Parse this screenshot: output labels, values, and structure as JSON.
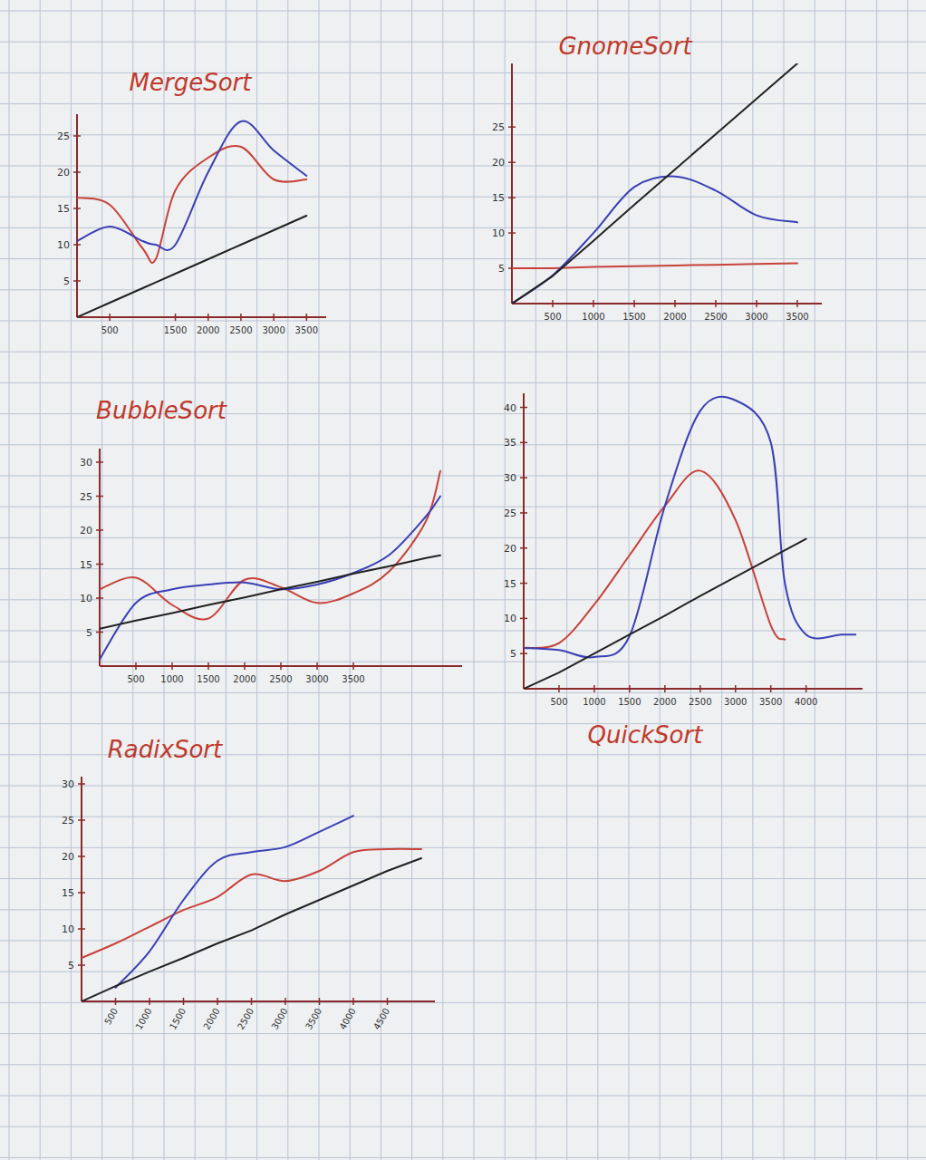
{
  "chart_data": [
    {
      "type": "line",
      "title": "MergeSort",
      "x": [
        0,
        500,
        1000,
        1200,
        1500,
        2000,
        2500,
        3000,
        3500
      ],
      "series": [
        {
          "color": "#c8423a",
          "line_style": "smooth",
          "values": [
            16.5,
            15.5,
            9.5,
            8,
            17.5,
            22,
            23.5,
            19,
            19
          ]
        },
        {
          "color": "#3b3fb5",
          "line_style": "smooth",
          "values": [
            10.5,
            12.5,
            10.5,
            10,
            10,
            20,
            27,
            23,
            19.5
          ]
        },
        {
          "color": "#222222",
          "line_style": "solid",
          "values": [
            0,
            2,
            4,
            4.8,
            6,
            8,
            10,
            12,
            14
          ]
        }
      ],
      "xlim": [
        0,
        3800
      ],
      "ylim": [
        0,
        28
      ],
      "xticks": [
        500,
        1500,
        2000,
        2500,
        3000,
        3500
      ],
      "yticks": [
        5,
        10,
        15,
        20,
        25
      ]
    },
    {
      "type": "line",
      "title": "GnomeSort",
      "x": [
        0,
        500,
        1000,
        1500,
        2000,
        2500,
        3000,
        3500
      ],
      "series": [
        {
          "color": "#c8423a",
          "line_style": "solid",
          "values": [
            5,
            5,
            5.2,
            5.3,
            5.4,
            5.5,
            5.6,
            5.7
          ]
        },
        {
          "color": "#3b3fb5",
          "line_style": "smooth",
          "values": [
            0,
            4,
            10,
            16.5,
            18,
            16,
            12.5,
            11.5
          ]
        },
        {
          "color": "#222222",
          "line_style": "solid",
          "values": [
            0,
            3.9,
            8.9,
            14,
            19,
            24,
            29,
            34
          ]
        }
      ],
      "xlim": [
        0,
        3800
      ],
      "ylim": [
        0,
        34
      ],
      "xticks": [
        500,
        1000,
        1500,
        2000,
        2500,
        3000,
        3500
      ],
      "yticks": [
        5,
        10,
        15,
        20,
        25
      ]
    },
    {
      "type": "line",
      "title": "BubbleSort",
      "x": [
        0,
        500,
        1000,
        1500,
        2000,
        2500,
        3000,
        3500,
        4000,
        4500,
        4700
      ],
      "series": [
        {
          "color": "#c8423a",
          "line_style": "smooth",
          "values": [
            11.3,
            13,
            9,
            7,
            12.7,
            11.6,
            9.3,
            10.7,
            14,
            21.3,
            28.7
          ]
        },
        {
          "color": "#3b3fb5",
          "line_style": "smooth",
          "values": [
            1,
            9.3,
            11.3,
            12,
            12.3,
            11.3,
            12,
            13.7,
            16.4,
            22,
            25
          ]
        },
        {
          "color": "#222222",
          "line_style": "solid",
          "values": [
            5.5,
            6.7,
            7.8,
            9,
            10.1,
            11.3,
            12.4,
            13.6,
            14.7,
            15.9,
            16.3
          ]
        }
      ],
      "xlim": [
        0,
        5000
      ],
      "ylim": [
        0,
        32
      ],
      "xticks": [
        500,
        1000,
        1500,
        2000,
        2500,
        3000,
        3500
      ],
      "yticks": [
        5,
        10,
        15,
        20,
        25,
        30
      ]
    },
    {
      "type": "line",
      "title": "QuickSort",
      "x": [
        0,
        500,
        1000,
        1500,
        2000,
        2500,
        3000,
        3500,
        3700,
        4000,
        4500,
        4700
      ],
      "series": [
        {
          "color": "#c8423a",
          "line_style": "smooth",
          "values": [
            5.8,
            6.5,
            12,
            19,
            26,
            31,
            24,
            9,
            7,
            null,
            null,
            null
          ]
        },
        {
          "color": "#3b3fb5",
          "line_style": "smooth",
          "values": [
            5.8,
            5.5,
            4.5,
            7.5,
            26,
            39.5,
            41,
            35,
            15,
            7.7,
            7.7,
            7.7
          ]
        },
        {
          "color": "#222222",
          "line_style": "solid",
          "values": [
            0,
            2.3,
            5,
            7.7,
            10.4,
            13.2,
            15.9,
            18.6,
            19.7,
            21.3,
            null,
            null
          ]
        }
      ],
      "xlim": [
        0,
        4800
      ],
      "ylim": [
        0,
        42
      ],
      "xticks": [
        500,
        1000,
        1500,
        2000,
        2500,
        3000,
        3500,
        4000
      ],
      "yticks": [
        5,
        10,
        15,
        20,
        25,
        30,
        35,
        40
      ]
    },
    {
      "type": "line",
      "title": "RadixSort",
      "x": [
        0,
        500,
        1000,
        1500,
        2000,
        2500,
        3000,
        3500,
        4000,
        4500,
        5000
      ],
      "series": [
        {
          "color": "#c8423a",
          "line_style": "smooth",
          "values": [
            6,
            8,
            10.3,
            12.6,
            14.4,
            17.5,
            16.6,
            18,
            20.6,
            21,
            21
          ]
        },
        {
          "color": "#3b3fb5",
          "line_style": "smooth",
          "values": [
            null,
            1.9,
            6.9,
            14,
            19.4,
            20.6,
            21.3,
            23.4,
            25.6,
            null,
            null
          ]
        },
        {
          "color": "#222222",
          "line_style": "solid",
          "values": [
            0,
            2.1,
            4.1,
            6,
            8,
            9.8,
            12,
            14,
            16,
            18,
            19.75
          ]
        }
      ],
      "xlim": [
        0,
        5200
      ],
      "ylim": [
        0,
        31
      ],
      "xticks": [
        500,
        1000,
        1500,
        2000,
        2500,
        3000,
        3500,
        4000,
        4500
      ],
      "yticks": [
        5,
        10,
        15,
        20,
        25,
        30
      ]
    }
  ]
}
